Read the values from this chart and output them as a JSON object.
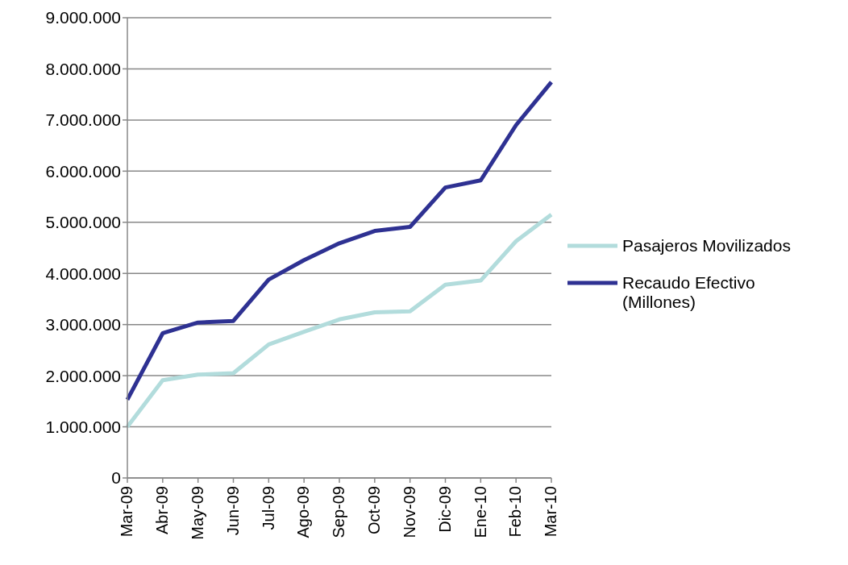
{
  "chart_data": {
    "type": "line",
    "categories": [
      "Mar-09",
      "Abr-09",
      "May-09",
      "Jun-09",
      "Jul-09",
      "Ago-09",
      "Sep-09",
      "Oct-09",
      "Nov-09",
      "Dic-09",
      "Ene-10",
      "Feb-10",
      "Mar-10"
    ],
    "series": [
      {
        "name": "Pasajeros Movilizados",
        "color": "#b2dcdc",
        "values": [
          1000000,
          1910000,
          2020000,
          2050000,
          2610000,
          2860000,
          3100000,
          3240000,
          3260000,
          3780000,
          3860000,
          4630000,
          5150000
        ]
      },
      {
        "name": "Recaudo Efectivo (Millones)",
        "color": "#2e3192",
        "values": [
          1530000,
          2830000,
          3040000,
          3070000,
          3880000,
          4260000,
          4590000,
          4830000,
          4910000,
          5680000,
          5820000,
          6900000,
          7740000
        ]
      }
    ],
    "ylim": [
      0,
      9000000
    ],
    "yticks": [
      0,
      {
        "value": 1000000,
        "label": "1.000.000"
      },
      {
        "value": 2000000,
        "label": "2.000.000"
      },
      {
        "value": 3000000,
        "label": "3.000.000"
      },
      {
        "value": 4000000,
        "label": "4.000.000"
      },
      {
        "value": 5000000,
        "label": "5.000.000"
      },
      {
        "value": 6000000,
        "label": "6.000.000"
      },
      {
        "value": 7000000,
        "label": "7.000.000"
      },
      {
        "value": 8000000,
        "label": "8.000.000"
      },
      {
        "value": 9000000,
        "label": "9.000.000"
      }
    ],
    "grid": "y",
    "legend": "right",
    "marker": "none",
    "line_style": "solid"
  }
}
